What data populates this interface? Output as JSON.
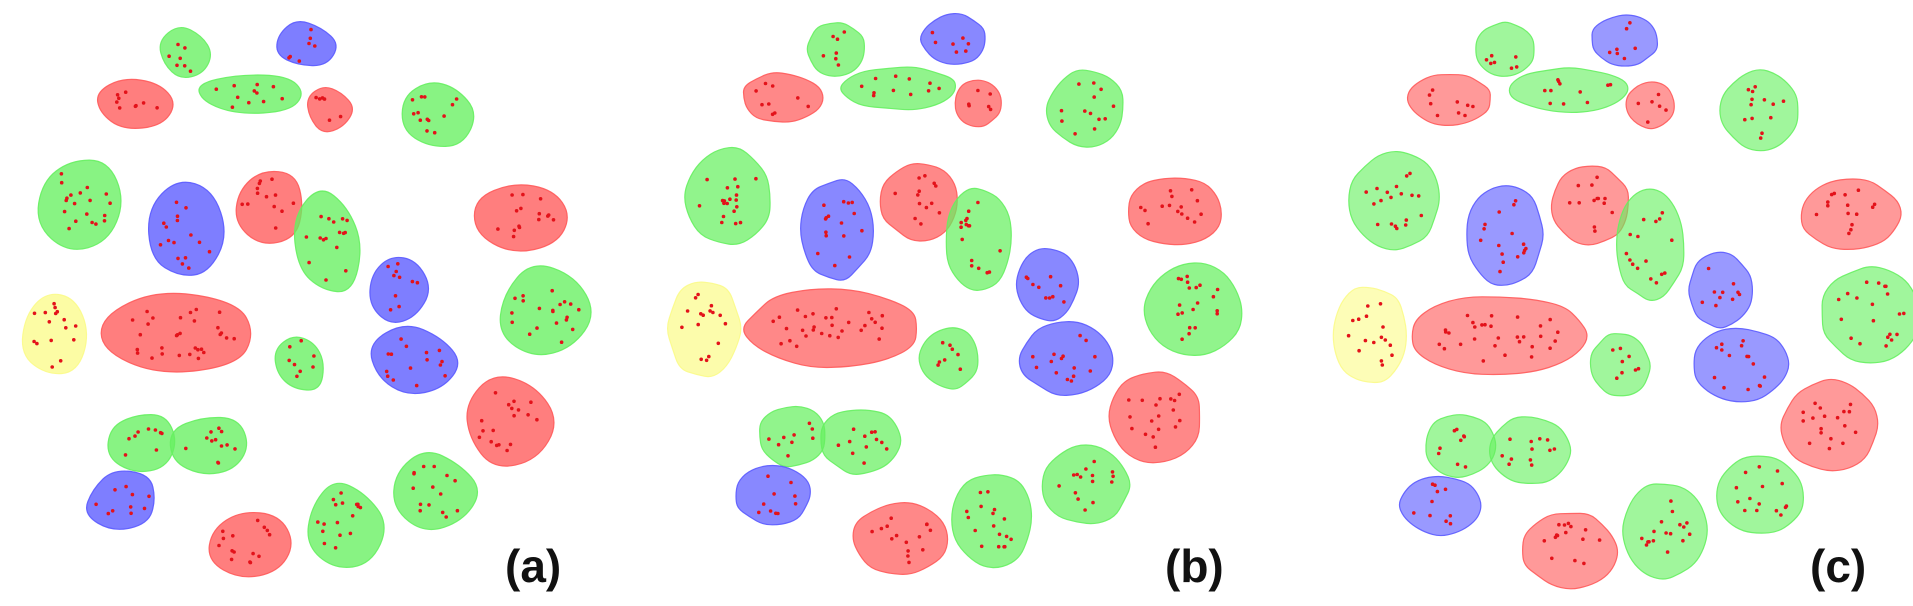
{
  "panels": [
    {
      "id": "a",
      "label": "(a)"
    },
    {
      "id": "b",
      "label": "(b)"
    },
    {
      "id": "c",
      "label": "(c)"
    }
  ],
  "colors": {
    "red": "#ff5a5a",
    "green": "#66f060",
    "blue": "#5a5aff",
    "yellow": "#fbfb8a",
    "point": "#e3121a",
    "background": "#ffffff"
  }
}
